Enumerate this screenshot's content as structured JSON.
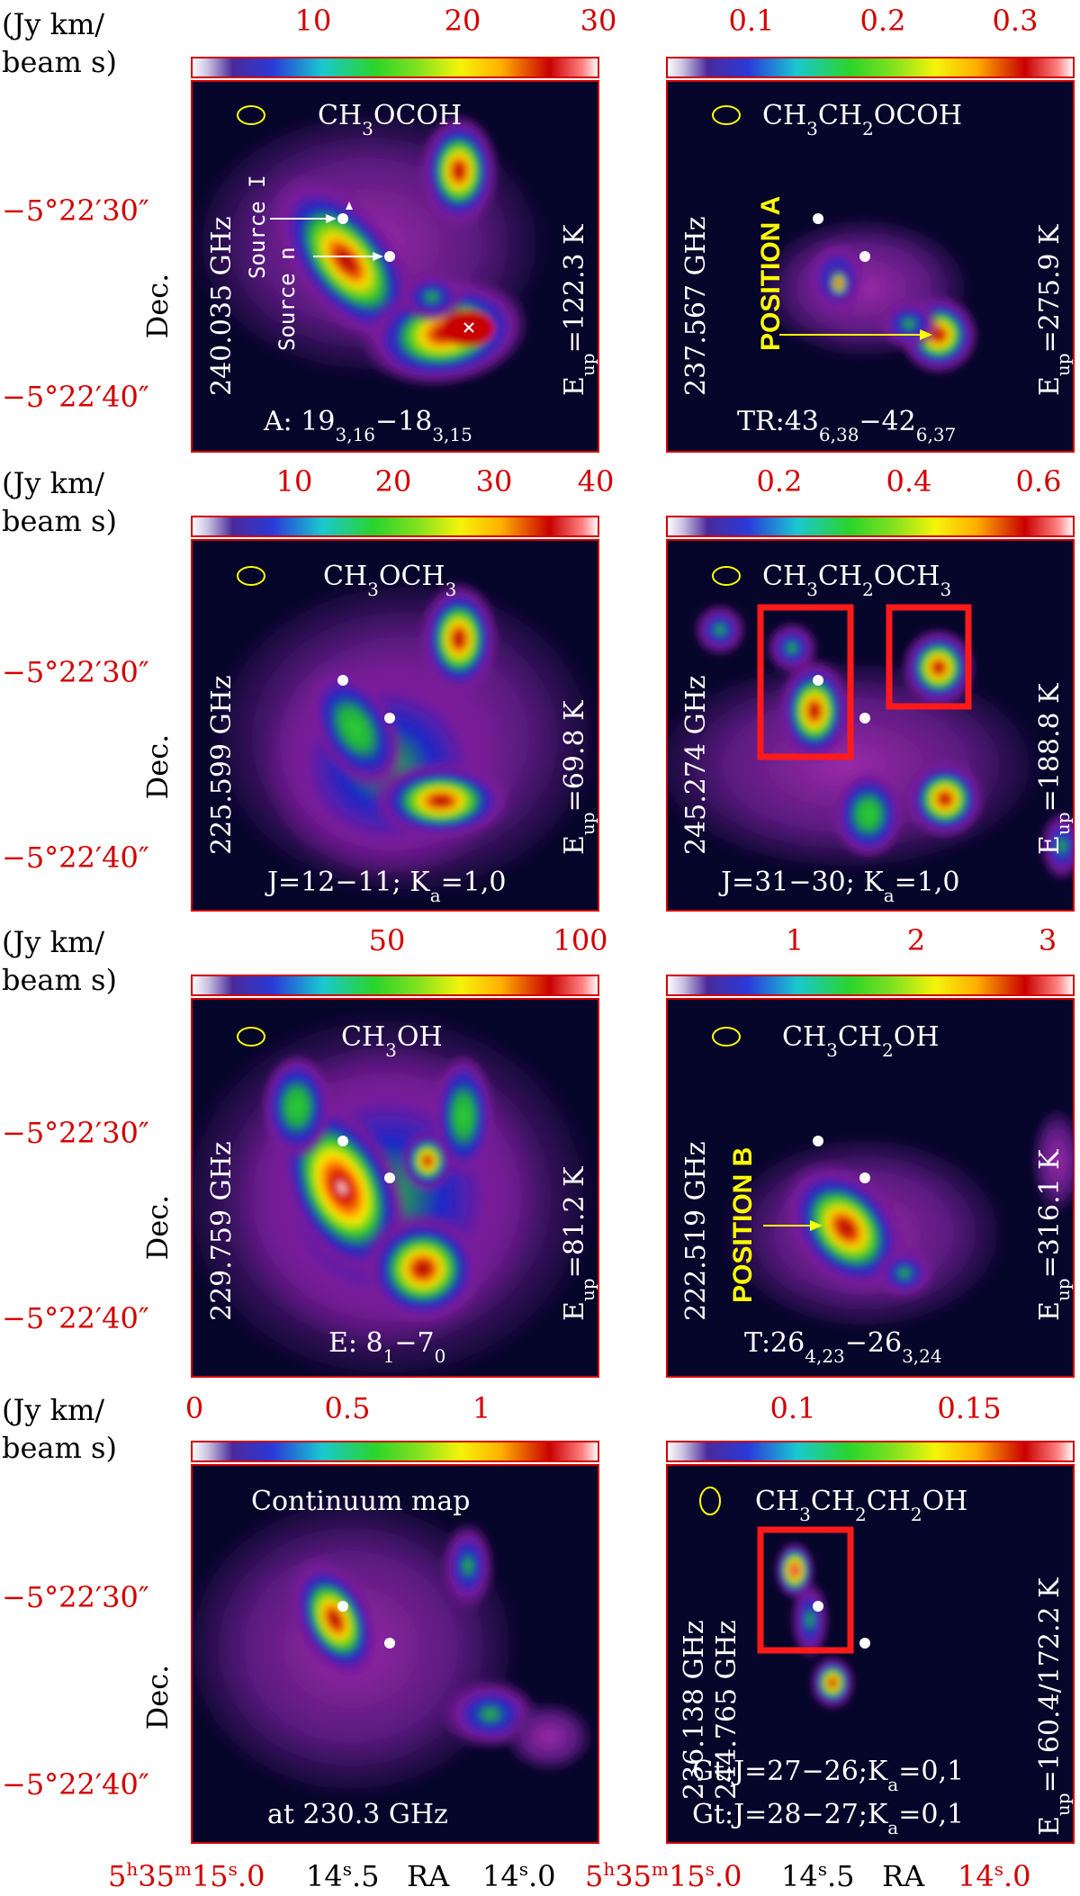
{
  "unit_label": {
    "line1": "(Jy km/",
    "line2": "beam s)"
  },
  "axis": {
    "ylabel": "Dec.",
    "dec_ticks": [
      "−5°22′30″",
      "−5°22′40″"
    ],
    "xlabel": "RA",
    "ra_ticks": [
      {
        "base": "5",
        "h": "h",
        "m_base": "35",
        "m": "m",
        "s_base": "15",
        "s": "s",
        "frac": ".0"
      },
      {
        "base": "14",
        "s": "s",
        "frac": ".5"
      },
      {
        "base": "14",
        "s": "s",
        "frac": ".0"
      }
    ]
  },
  "colors": {
    "axis_red": "#d40000",
    "map_bg": "#06052a",
    "label_yellow": "#ffff00",
    "box_red": "#ff1a1a"
  },
  "chart_data": [
    {
      "type": "heatmap",
      "panel": "CH3OCOH",
      "colorbar_ticks": [
        "10",
        "20",
        "30"
      ],
      "molecule": "CH3OCOH",
      "frequency": "240.035 GHz",
      "eup": "E_up=122.3 K",
      "transition": "A: 19_{3,16}−18_{3,15}",
      "annotations": [
        "Source I",
        "Source n"
      ]
    },
    {
      "type": "heatmap",
      "panel": "CH3CH2OCOH",
      "colorbar_ticks": [
        "0.1",
        "0.2",
        "0.3"
      ],
      "molecule": "CH3CH2OCOH",
      "frequency": "237.567 GHz",
      "eup": "E_up=275.9 K",
      "transition": "TR:43_{6,38}−42_{6,37}",
      "annotations": [
        "POSITION A"
      ]
    },
    {
      "type": "heatmap",
      "panel": "CH3OCH3",
      "colorbar_ticks": [
        "10",
        "20",
        "30",
        "40"
      ],
      "molecule": "CH3OCH3",
      "frequency": "225.599 GHz",
      "eup": "E_up=69.8 K",
      "transition": "J=12−11; K_a=1,0"
    },
    {
      "type": "heatmap",
      "panel": "CH3CH2OCH3",
      "colorbar_ticks": [
        "0.2",
        "0.4",
        "0.6"
      ],
      "molecule": "CH3CH2OCH3",
      "frequency": "245.274 GHz",
      "eup": "E_up=188.8 K",
      "transition": "J=31−30; K_a=1,0"
    },
    {
      "type": "heatmap",
      "panel": "CH3OH",
      "colorbar_ticks": [
        "50",
        "100"
      ],
      "molecule": "CH3OH",
      "frequency": "229.759 GHz",
      "eup": "E_up=81.2 K",
      "transition": "E: 8_1−7_0"
    },
    {
      "type": "heatmap",
      "panel": "CH3CH2OH",
      "colorbar_ticks": [
        "1",
        "2",
        "3"
      ],
      "molecule": "CH3CH2OH",
      "frequency": "222.519 GHz",
      "eup": "E_up=316.1 K",
      "transition": "T:26_{4,23}−26_{3,24}",
      "annotations": [
        "POSITION B"
      ]
    },
    {
      "type": "heatmap",
      "panel": "Continuum",
      "colorbar_ticks": [
        "0",
        "0.5",
        "1"
      ],
      "title": "Continuum map",
      "frequency": "at 230.3 GHz"
    },
    {
      "type": "heatmap",
      "panel": "CH3CH2CH2OH",
      "colorbar_ticks": [
        "0.1",
        "0.15"
      ],
      "molecule": "CH3CH2CH2OH",
      "frequency": "236.138 GHz",
      "frequency2": "244.765 GHz",
      "eup": "E_up=160.4/172.2 K",
      "transition": "Gt:J=27−26;K_a=0,1",
      "transition2": "Gt:J=28−27;K_a=0,1"
    }
  ]
}
